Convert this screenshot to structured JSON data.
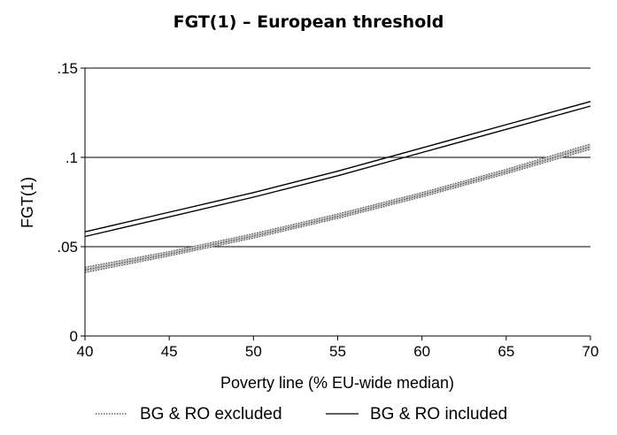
{
  "chart_data": {
    "type": "line",
    "title": "FGT(1) – European threshold",
    "xlabel": "Poverty line (% EU-wide median)",
    "ylabel": "FGT(1)",
    "xlim": [
      40,
      70
    ],
    "ylim": [
      0,
      0.15
    ],
    "x_ticks": [
      "40",
      "45",
      "50",
      "55",
      "60",
      "65",
      "70"
    ],
    "y_ticks": [
      "0",
      ".05",
      ".1",
      ".15"
    ],
    "grid": "horizontal",
    "legend_position": "bottom",
    "series": [
      {
        "name": "BG & RO excluded",
        "style": "dotted-band",
        "x": [
          40,
          45,
          50,
          55,
          60,
          65,
          70
        ],
        "values": [
          0.037,
          0.046,
          0.056,
          0.067,
          0.079,
          0.092,
          0.106
        ],
        "lower": [
          0.0355,
          0.0448,
          0.0548,
          0.0658,
          0.0778,
          0.0908,
          0.1045
        ],
        "upper": [
          0.0385,
          0.0473,
          0.0573,
          0.0683,
          0.0803,
          0.0933,
          0.1075
        ]
      },
      {
        "name": "BG & RO included",
        "style": "solid-band",
        "x": [
          40,
          45,
          50,
          55,
          60,
          65,
          70
        ],
        "values": [
          0.057,
          0.068,
          0.079,
          0.091,
          0.104,
          0.117,
          0.13
        ],
        "lower": [
          0.0557,
          0.0667,
          0.0777,
          0.0897,
          0.1027,
          0.1157,
          0.1287
        ],
        "upper": [
          0.0583,
          0.0693,
          0.0803,
          0.0923,
          0.1053,
          0.1183,
          0.1313
        ]
      }
    ]
  }
}
